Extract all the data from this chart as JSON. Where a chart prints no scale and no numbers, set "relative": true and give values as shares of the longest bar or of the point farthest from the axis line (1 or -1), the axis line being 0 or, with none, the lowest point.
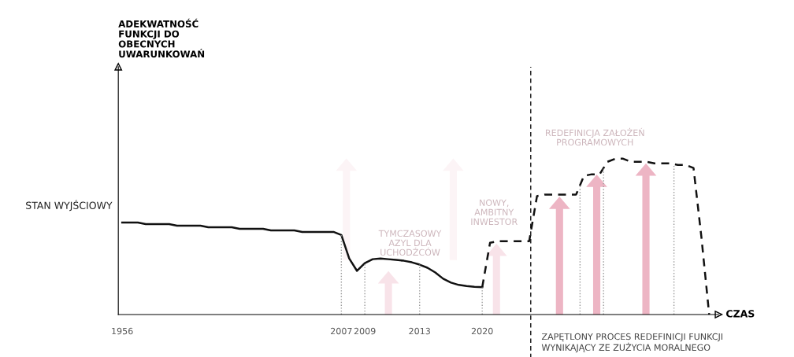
{
  "chart_data": {
    "type": "line",
    "relative": true,
    "xlabel": "CZAS",
    "categories": [
      "1956",
      null,
      null,
      null,
      null,
      null,
      null,
      null,
      null,
      null,
      null,
      null,
      null,
      null,
      null,
      null,
      null,
      null,
      null,
      null,
      null,
      null,
      null,
      null,
      null,
      null,
      null,
      null,
      "2007",
      null,
      null,
      "2009",
      null,
      null,
      null,
      null,
      null,
      null,
      "2013",
      null,
      null,
      null,
      null,
      null,
      null,
      null,
      "2020",
      null,
      null,
      null,
      null,
      null,
      null,
      null,
      null,
      null,
      null,
      null,
      null,
      null,
      null,
      null,
      null,
      null,
      null,
      null,
      null,
      null,
      null,
      null,
      null,
      null,
      null,
      null,
      null,
      null
    ],
    "tick_labels": "x",
    "grid": false,
    "legend": false,
    "marker": "none",
    "series": [
      {
        "color": "#111111",
        "line_style": "solid",
        "values": [
          0.59,
          0.59,
          0.59,
          0.58,
          0.58,
          0.58,
          0.58,
          0.57,
          0.57,
          0.57,
          0.57,
          0.56,
          0.56,
          0.56,
          0.56,
          0.55,
          0.55,
          0.55,
          0.55,
          0.54,
          0.54,
          0.54,
          0.54,
          0.53,
          0.53,
          0.53,
          0.53,
          0.53,
          0.51,
          0.36,
          0.28,
          0.33,
          0.355,
          0.36,
          0.355,
          0.35,
          0.345,
          0.335,
          0.32,
          0.3,
          0.27,
          0.23,
          0.205,
          0.19,
          0.183,
          0.178,
          0.175,
          null,
          null,
          null,
          null,
          null,
          null,
          null,
          null,
          null,
          null,
          null,
          null,
          null,
          null,
          null,
          null,
          null,
          null,
          null,
          null,
          null,
          null,
          null,
          null,
          null,
          null,
          null,
          null,
          null
        ]
      },
      {
        "color": "#111111",
        "line_style": "dashed",
        "values": [
          null,
          null,
          null,
          null,
          null,
          null,
          null,
          null,
          null,
          null,
          null,
          null,
          null,
          null,
          null,
          null,
          null,
          null,
          null,
          null,
          null,
          null,
          null,
          null,
          null,
          null,
          null,
          null,
          null,
          null,
          null,
          null,
          null,
          null,
          null,
          null,
          null,
          null,
          null,
          null,
          null,
          null,
          null,
          null,
          null,
          null,
          0.175,
          0.46,
          0.47,
          0.47,
          0.47,
          0.47,
          0.47,
          0.76,
          0.77,
          0.77,
          0.77,
          0.77,
          0.77,
          0.89,
          0.9,
          0.9,
          0.98,
          1,
          1,
          0.98,
          0.98,
          0.98,
          0.97,
          0.97,
          0.97,
          0.96,
          0.96,
          0.94,
          0.5,
          0
        ]
      }
    ],
    "ref_lines": [
      {
        "axis": "x",
        "value": "2007",
        "color": "#999999",
        "line_style": "dotted"
      },
      {
        "axis": "x",
        "value": "2009",
        "color": "#999999",
        "line_style": "dotted"
      },
      {
        "axis": "x",
        "value": "2013",
        "color": "#999999",
        "line_style": "dotted"
      },
      {
        "axis": "x",
        "value": "2020",
        "color": "#999999",
        "line_style": "dotted"
      }
    ],
    "annotations": [
      "ADEKWATNOŚĆ\nFUNKCJI DO\nOBECNYCH\nUWARUNKOWAŃ",
      "STAN WYJŚCIOWY",
      "ZAPĘTLONY PROCES REDEFINICJI FUNKCJI\nWYNIKAJĄCY ZE ZUŻYCIA MORALNEGO",
      "TYMCZASOWY\nAZYL DLA\nUCHODŹCÓW",
      "NOWY,\nAMBITNY\nINWESTOR",
      "REDEFINICJA ZAŁOŻEŃ\nPROGRAMOWYCH"
    ]
  }
}
